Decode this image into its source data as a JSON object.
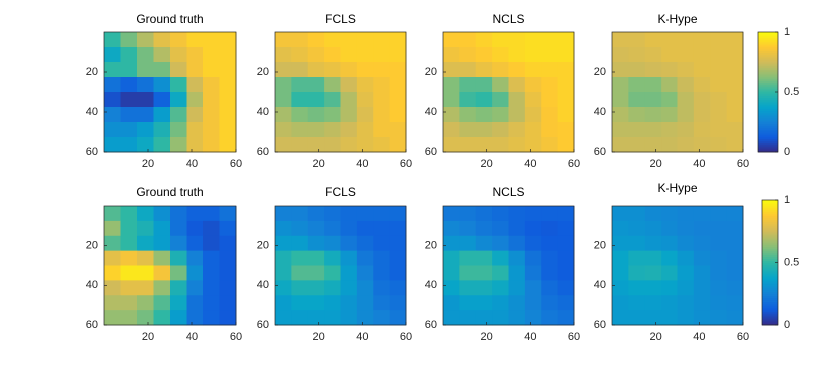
{
  "chart_data": [
    {
      "type": "heatmap",
      "title": "Ground truth",
      "colormap": "parula",
      "clim": [
        0,
        1
      ],
      "xlim": [
        0,
        60
      ],
      "ylim": [
        0,
        60
      ],
      "y_reversed": true,
      "xticks": [
        20,
        40,
        60
      ],
      "yticks": [
        20,
        40,
        60
      ],
      "z": [
        [
          0.5,
          0.6,
          0.7,
          0.8,
          0.85,
          0.9,
          0.9,
          0.9
        ],
        [
          0.4,
          0.5,
          0.6,
          0.7,
          0.8,
          0.85,
          0.9,
          0.9
        ],
        [
          0.5,
          0.5,
          0.6,
          0.6,
          0.75,
          0.85,
          0.9,
          0.9
        ],
        [
          0.2,
          0.15,
          0.2,
          0.3,
          0.5,
          0.75,
          0.85,
          0.9
        ],
        [
          0.1,
          0.05,
          0.05,
          0.15,
          0.4,
          0.7,
          0.85,
          0.9
        ],
        [
          0.25,
          0.2,
          0.2,
          0.35,
          0.55,
          0.75,
          0.85,
          0.9
        ],
        [
          0.3,
          0.3,
          0.35,
          0.45,
          0.6,
          0.8,
          0.85,
          0.9
        ],
        [
          0.35,
          0.35,
          0.4,
          0.5,
          0.65,
          0.8,
          0.85,
          0.9
        ]
      ]
    },
    {
      "type": "heatmap",
      "title": "FCLS",
      "colormap": "parula",
      "clim": [
        0,
        1
      ],
      "xlim": [
        0,
        60
      ],
      "ylim": [
        0,
        60
      ],
      "y_reversed": true,
      "xticks": [
        20,
        40,
        60
      ],
      "yticks": [
        20,
        40,
        60
      ],
      "z": [
        [
          0.85,
          0.85,
          0.88,
          0.9,
          0.9,
          0.9,
          0.9,
          0.9
        ],
        [
          0.8,
          0.82,
          0.85,
          0.88,
          0.9,
          0.9,
          0.9,
          0.9
        ],
        [
          0.75,
          0.75,
          0.8,
          0.82,
          0.85,
          0.88,
          0.88,
          0.88
        ],
        [
          0.6,
          0.55,
          0.55,
          0.65,
          0.75,
          0.82,
          0.85,
          0.88
        ],
        [
          0.6,
          0.5,
          0.5,
          0.55,
          0.7,
          0.8,
          0.85,
          0.88
        ],
        [
          0.68,
          0.62,
          0.6,
          0.62,
          0.7,
          0.78,
          0.85,
          0.88
        ],
        [
          0.72,
          0.7,
          0.7,
          0.72,
          0.75,
          0.8,
          0.85,
          0.85
        ],
        [
          0.75,
          0.75,
          0.75,
          0.75,
          0.78,
          0.8,
          0.82,
          0.85
        ]
      ]
    },
    {
      "type": "heatmap",
      "title": "NCLS",
      "colormap": "parula",
      "clim": [
        0,
        1
      ],
      "xlim": [
        0,
        60
      ],
      "ylim": [
        0,
        60
      ],
      "y_reversed": true,
      "xticks": [
        20,
        40,
        60
      ],
      "yticks": [
        20,
        40,
        60
      ],
      "z": [
        [
          0.88,
          0.88,
          0.9,
          0.92,
          0.92,
          0.93,
          0.93,
          0.93
        ],
        [
          0.84,
          0.86,
          0.88,
          0.9,
          0.92,
          0.93,
          0.93,
          0.93
        ],
        [
          0.78,
          0.78,
          0.82,
          0.85,
          0.88,
          0.9,
          0.9,
          0.9
        ],
        [
          0.62,
          0.56,
          0.56,
          0.66,
          0.78,
          0.85,
          0.88,
          0.9
        ],
        [
          0.62,
          0.52,
          0.5,
          0.56,
          0.72,
          0.82,
          0.88,
          0.9
        ],
        [
          0.7,
          0.64,
          0.62,
          0.64,
          0.72,
          0.8,
          0.87,
          0.9
        ],
        [
          0.75,
          0.72,
          0.72,
          0.74,
          0.78,
          0.82,
          0.87,
          0.88
        ],
        [
          0.78,
          0.78,
          0.78,
          0.78,
          0.8,
          0.82,
          0.85,
          0.88
        ]
      ]
    },
    {
      "type": "heatmap",
      "title": "K-Hype",
      "colormap": "parula",
      "clim": [
        0,
        1
      ],
      "xlim": [
        0,
        60
      ],
      "ylim": [
        0,
        60
      ],
      "y_reversed": true,
      "xticks": [
        20,
        40,
        60
      ],
      "yticks": [
        20,
        40,
        60
      ],
      "z": [
        [
          0.78,
          0.78,
          0.8,
          0.8,
          0.8,
          0.8,
          0.8,
          0.8
        ],
        [
          0.76,
          0.77,
          0.78,
          0.8,
          0.8,
          0.8,
          0.8,
          0.8
        ],
        [
          0.74,
          0.74,
          0.75,
          0.76,
          0.78,
          0.8,
          0.8,
          0.8
        ],
        [
          0.66,
          0.62,
          0.62,
          0.68,
          0.74,
          0.78,
          0.8,
          0.8
        ],
        [
          0.66,
          0.6,
          0.6,
          0.62,
          0.72,
          0.76,
          0.78,
          0.8
        ],
        [
          0.7,
          0.67,
          0.66,
          0.67,
          0.72,
          0.76,
          0.78,
          0.8
        ],
        [
          0.72,
          0.72,
          0.72,
          0.73,
          0.74,
          0.77,
          0.78,
          0.78
        ],
        [
          0.74,
          0.74,
          0.74,
          0.74,
          0.75,
          0.76,
          0.77,
          0.78
        ]
      ],
      "colorbar": {
        "clim": [
          0,
          1
        ],
        "ticks": [
          0,
          0.5,
          1
        ]
      }
    },
    {
      "type": "heatmap",
      "title": "Ground truth",
      "colormap": "parula",
      "clim": [
        0,
        1
      ],
      "xlim": [
        0,
        60
      ],
      "ylim": [
        0,
        60
      ],
      "y_reversed": true,
      "xticks": [
        20,
        40,
        60
      ],
      "yticks": [
        20,
        40,
        60
      ],
      "z": [
        [
          0.55,
          0.5,
          0.4,
          0.3,
          0.2,
          0.15,
          0.15,
          0.2
        ],
        [
          0.65,
          0.5,
          0.45,
          0.35,
          0.2,
          0.12,
          0.1,
          0.15
        ],
        [
          0.55,
          0.5,
          0.4,
          0.35,
          0.25,
          0.15,
          0.1,
          0.12
        ],
        [
          0.8,
          0.85,
          0.8,
          0.65,
          0.45,
          0.25,
          0.15,
          0.12
        ],
        [
          0.9,
          0.95,
          0.95,
          0.85,
          0.6,
          0.3,
          0.15,
          0.12
        ],
        [
          0.75,
          0.8,
          0.8,
          0.65,
          0.45,
          0.25,
          0.15,
          0.12
        ],
        [
          0.7,
          0.7,
          0.65,
          0.55,
          0.4,
          0.2,
          0.15,
          0.12
        ],
        [
          0.65,
          0.65,
          0.6,
          0.5,
          0.35,
          0.2,
          0.15,
          0.12
        ]
      ]
    },
    {
      "type": "heatmap",
      "title": "FCLS",
      "colormap": "parula",
      "clim": [
        0,
        1
      ],
      "xlim": [
        0,
        60
      ],
      "ylim": [
        0,
        60
      ],
      "y_reversed": true,
      "xticks": [
        20,
        40,
        60
      ],
      "yticks": [
        20,
        40,
        60
      ],
      "z": [
        [
          0.25,
          0.25,
          0.22,
          0.2,
          0.18,
          0.18,
          0.18,
          0.18
        ],
        [
          0.3,
          0.28,
          0.25,
          0.22,
          0.18,
          0.15,
          0.15,
          0.15
        ],
        [
          0.35,
          0.35,
          0.3,
          0.28,
          0.22,
          0.18,
          0.15,
          0.15
        ],
        [
          0.45,
          0.5,
          0.5,
          0.42,
          0.32,
          0.22,
          0.18,
          0.15
        ],
        [
          0.45,
          0.55,
          0.55,
          0.5,
          0.35,
          0.25,
          0.18,
          0.15
        ],
        [
          0.4,
          0.45,
          0.45,
          0.42,
          0.35,
          0.28,
          0.2,
          0.18
        ],
        [
          0.35,
          0.38,
          0.38,
          0.36,
          0.32,
          0.28,
          0.22,
          0.2
        ],
        [
          0.35,
          0.35,
          0.35,
          0.35,
          0.32,
          0.28,
          0.25,
          0.22
        ]
      ]
    },
    {
      "type": "heatmap",
      "title": "NCLS",
      "colormap": "parula",
      "clim": [
        0,
        1
      ],
      "xlim": [
        0,
        60
      ],
      "ylim": [
        0,
        60
      ],
      "y_reversed": true,
      "xticks": [
        20,
        40,
        60
      ],
      "yticks": [
        20,
        40,
        60
      ],
      "z": [
        [
          0.22,
          0.22,
          0.2,
          0.18,
          0.16,
          0.15,
          0.15,
          0.15
        ],
        [
          0.27,
          0.25,
          0.22,
          0.2,
          0.16,
          0.13,
          0.12,
          0.13
        ],
        [
          0.32,
          0.32,
          0.28,
          0.25,
          0.2,
          0.15,
          0.13,
          0.13
        ],
        [
          0.42,
          0.48,
          0.48,
          0.4,
          0.3,
          0.2,
          0.15,
          0.13
        ],
        [
          0.42,
          0.52,
          0.52,
          0.48,
          0.33,
          0.22,
          0.15,
          0.13
        ],
        [
          0.38,
          0.43,
          0.43,
          0.4,
          0.33,
          0.25,
          0.18,
          0.15
        ],
        [
          0.33,
          0.36,
          0.36,
          0.34,
          0.3,
          0.25,
          0.2,
          0.18
        ],
        [
          0.33,
          0.33,
          0.33,
          0.33,
          0.3,
          0.26,
          0.22,
          0.2
        ]
      ]
    },
    {
      "type": "heatmap",
      "title": "K-Hype",
      "colormap": "parula",
      "clim": [
        0,
        1
      ],
      "xlim": [
        0,
        60
      ],
      "ylim": [
        0,
        60
      ],
      "y_reversed": true,
      "xticks": [
        20,
        40,
        60
      ],
      "yticks": [
        20,
        40,
        60
      ],
      "z": [
        [
          0.3,
          0.3,
          0.28,
          0.27,
          0.26,
          0.26,
          0.26,
          0.26
        ],
        [
          0.32,
          0.31,
          0.3,
          0.28,
          0.26,
          0.25,
          0.25,
          0.25
        ],
        [
          0.34,
          0.34,
          0.32,
          0.31,
          0.28,
          0.26,
          0.25,
          0.25
        ],
        [
          0.38,
          0.42,
          0.42,
          0.38,
          0.33,
          0.28,
          0.26,
          0.25
        ],
        [
          0.38,
          0.44,
          0.45,
          0.42,
          0.35,
          0.3,
          0.26,
          0.25
        ],
        [
          0.36,
          0.38,
          0.38,
          0.37,
          0.34,
          0.3,
          0.27,
          0.26
        ],
        [
          0.34,
          0.35,
          0.35,
          0.34,
          0.32,
          0.3,
          0.28,
          0.27
        ],
        [
          0.34,
          0.34,
          0.34,
          0.34,
          0.32,
          0.3,
          0.29,
          0.28
        ]
      ],
      "colorbar": {
        "clim": [
          0,
          1
        ],
        "ticks": [
          0,
          0.5,
          1
        ]
      }
    }
  ]
}
